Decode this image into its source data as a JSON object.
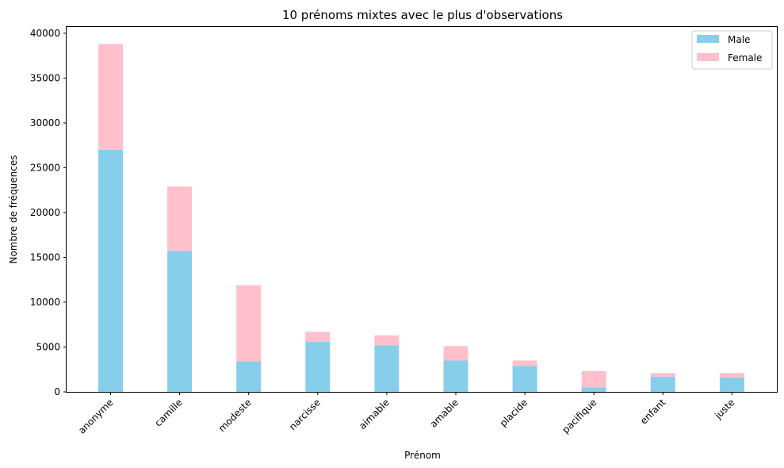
{
  "chart_data": {
    "type": "bar",
    "stacked": true,
    "title": "10 prénoms mixtes avec le plus d'observations",
    "xlabel": "Prénom",
    "ylabel": "Nombre de fréquences",
    "categories": [
      "anonyme",
      "camille",
      "modeste",
      "narcisse",
      "aimable",
      "amable",
      "placide",
      "pacifique",
      "enfant",
      "juste"
    ],
    "series": [
      {
        "name": "Male",
        "color": "#87ceeb",
        "values": [
          27000,
          15700,
          3400,
          5600,
          5200,
          3500,
          2900,
          500,
          1700,
          1600
        ]
      },
      {
        "name": "Female",
        "color": "#ffc0cb",
        "values": [
          11800,
          7200,
          8500,
          1100,
          1100,
          1600,
          600,
          1800,
          400,
          500
        ]
      }
    ],
    "ylim": [
      0,
      40700
    ],
    "yticks": [
      0,
      5000,
      10000,
      15000,
      20000,
      25000,
      30000,
      35000,
      40000
    ],
    "grid": false,
    "legend_position": "top-right"
  }
}
